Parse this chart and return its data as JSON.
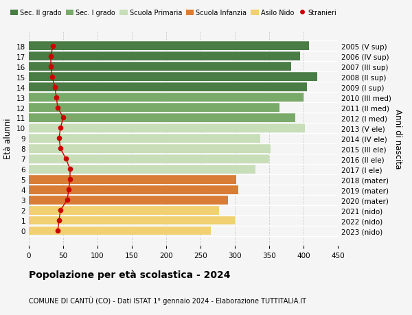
{
  "ages": [
    18,
    17,
    16,
    15,
    14,
    13,
    12,
    11,
    10,
    9,
    8,
    7,
    6,
    5,
    4,
    3,
    2,
    1,
    0
  ],
  "right_labels": [
    "2005 (V sup)",
    "2006 (IV sup)",
    "2007 (III sup)",
    "2008 (II sup)",
    "2009 (I sup)",
    "2010 (III med)",
    "2011 (II med)",
    "2012 (I med)",
    "2013 (V ele)",
    "2014 (IV ele)",
    "2015 (III ele)",
    "2016 (II ele)",
    "2017 (I ele)",
    "2018 (mater)",
    "2019 (mater)",
    "2020 (mater)",
    "2021 (nido)",
    "2022 (nido)",
    "2023 (nido)"
  ],
  "bar_values": [
    408,
    395,
    382,
    420,
    405,
    400,
    365,
    388,
    402,
    337,
    352,
    350,
    330,
    302,
    305,
    290,
    277,
    300,
    265
  ],
  "bar_colors": [
    "#4a7c45",
    "#4a7c45",
    "#4a7c45",
    "#4a7c45",
    "#4a7c45",
    "#7aaa6a",
    "#7aaa6a",
    "#7aaa6a",
    "#c8deb8",
    "#c8deb8",
    "#c8deb8",
    "#c8deb8",
    "#c8deb8",
    "#d97c35",
    "#d97c35",
    "#d97c35",
    "#f0d070",
    "#f0d070",
    "#f0d070"
  ],
  "stranieri_values": [
    35,
    32,
    32,
    34,
    38,
    40,
    42,
    50,
    46,
    44,
    46,
    54,
    60,
    60,
    58,
    56,
    46,
    44,
    42
  ],
  "legend_labels": [
    "Sec. II grado",
    "Sec. I grado",
    "Scuola Primaria",
    "Scuola Infanzia",
    "Asilo Nido",
    "Stranieri"
  ],
  "legend_colors": [
    "#4a7c45",
    "#7aaa6a",
    "#c8deb8",
    "#d97c35",
    "#f0d070",
    "#cc0000"
  ],
  "title": "Popolazione per età scolastica - 2024",
  "subtitle": "COMUNE DI CANTÙ (CO) - Dati ISTAT 1° gennaio 2024 - Elaborazione TUTTITALIA.IT",
  "ylabel_left": "Età alunni",
  "ylabel_right": "Anni di nascita",
  "xlim": [
    0,
    450
  ],
  "xticks": [
    0,
    50,
    100,
    150,
    200,
    250,
    300,
    350,
    400,
    450
  ],
  "stranieri_color": "#cc0000",
  "background_color": "#f5f5f5"
}
